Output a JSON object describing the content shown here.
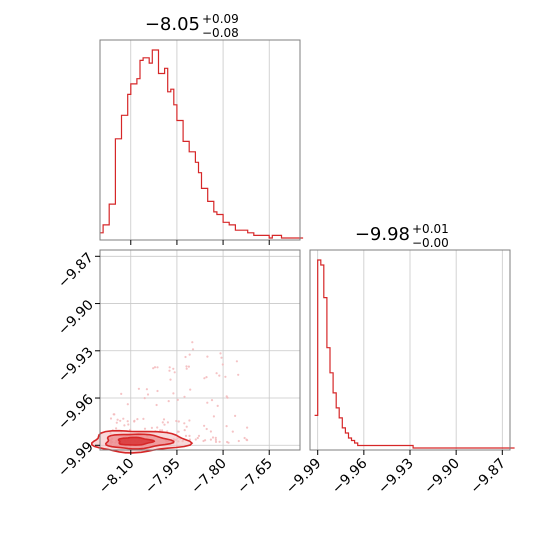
{
  "colors": {
    "line": "#d62728",
    "fill_light": "#f3b9bb",
    "fill_mid": "#ea7d80",
    "fill_dark": "#d62728",
    "frame": "#7f7f7f",
    "grid": "#c8c8c8"
  },
  "chart_data": [
    {
      "type": "histogram",
      "panel": "top-left",
      "title": {
        "main": "−8.05",
        "plus": "+0.09",
        "minus": "−0.08"
      },
      "xlim": [
        -8.2,
        -7.55
      ],
      "bin_edges_start": -8.2,
      "bin_width": 0.01,
      "counts": [
        2,
        5,
        5,
        13,
        13,
        38,
        38,
        47,
        47,
        55,
        59,
        59,
        61,
        68,
        69,
        69,
        67,
        72,
        72,
        63,
        63,
        65,
        56,
        57,
        51,
        45,
        45,
        37,
        37,
        33,
        33,
        29,
        25,
        19,
        19,
        14,
        14,
        10,
        9,
        9,
        6,
        6,
        5,
        5,
        3,
        3,
        3,
        3,
        2,
        2,
        1,
        1,
        1,
        1,
        1,
        0,
        1,
        1,
        1,
        0,
        0,
        0,
        0,
        0,
        0,
        0
      ],
      "x_ticks": [
        "−8.10",
        "−7.95",
        "−7.80",
        "−7.65"
      ],
      "x_tick_values": [
        -8.1,
        -7.95,
        -7.8,
        -7.65
      ]
    },
    {
      "type": "histogram",
      "panel": "bottom-right",
      "title": {
        "main": "−9.98",
        "plus": "+0.01",
        "minus": "−0.00"
      },
      "xlim": [
        -9.995,
        -9.865
      ],
      "bin_edges_start": -9.992,
      "bin_width": 0.002,
      "counts": [
        13,
        75,
        73,
        60,
        40,
        30,
        22,
        16,
        12,
        8,
        6,
        4,
        3,
        2,
        1,
        1,
        1,
        1,
        1,
        1,
        1,
        1,
        1,
        1,
        1,
        1,
        1,
        1,
        1,
        1,
        1,
        1,
        0,
        0,
        0,
        0,
        0,
        0,
        0,
        0,
        0,
        0,
        0,
        0,
        0,
        0,
        0,
        0,
        0,
        0,
        0,
        0,
        0,
        0,
        0,
        0,
        0,
        0,
        0,
        0,
        0,
        0,
        0,
        0,
        0
      ],
      "x_ticks": [
        "−9.99",
        "−9.96",
        "−9.93",
        "−9.90",
        "−9.87"
      ],
      "x_tick_values": [
        -9.99,
        -9.96,
        -9.93,
        -9.9,
        -9.87
      ]
    },
    {
      "type": "scatter-contour",
      "panel": "bottom-left",
      "xlim": [
        -8.2,
        -7.55
      ],
      "ylim": [
        -9.993,
        -9.866
      ],
      "x_ticks": [
        "−8.10",
        "−7.95",
        "−7.80",
        "−7.65"
      ],
      "x_tick_values": [
        -8.1,
        -7.95,
        -7.8,
        -7.65
      ],
      "y_ticks": [
        "−9.87",
        "−9.90",
        "−9.93",
        "−9.96",
        "−9.99"
      ],
      "y_tick_values": [
        -9.87,
        -9.9,
        -9.93,
        -9.96,
        -9.99
      ],
      "contour_center": [
        -8.095,
        -9.9875
      ],
      "contour_levels": [
        {
          "level": "outer",
          "rx": 0.155,
          "ry": 0.0068
        },
        {
          "level": "middle",
          "rx": 0.105,
          "ry": 0.0046
        },
        {
          "level": "inner",
          "rx": 0.055,
          "ry": 0.0024
        }
      ],
      "point_count": 160
    }
  ]
}
